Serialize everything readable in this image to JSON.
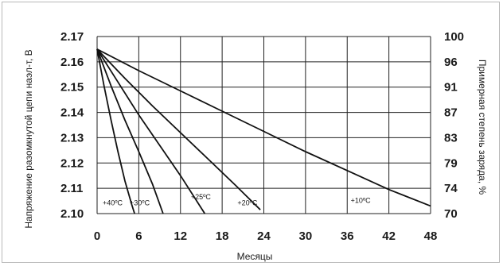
{
  "chart_data": {
    "type": "line",
    "xlabel": "Месяцы",
    "ylabel": "Напряжение разомкнутой цепи наэл-т, В",
    "y2label": "Примерная степень заряда, %",
    "x_ticks": [
      0,
      6,
      12,
      18,
      24,
      30,
      36,
      42,
      48
    ],
    "x_tick_labels": [
      "0",
      "6",
      "12",
      "18",
      "24",
      "30",
      "36",
      "42",
      "48"
    ],
    "xlim": [
      0,
      48
    ],
    "y_ticks": [
      2.1,
      2.11,
      2.12,
      2.13,
      2.14,
      2.15,
      2.16,
      2.17
    ],
    "y_tick_labels": [
      "2.10",
      "2.11",
      "2.12",
      "2.13",
      "2.14",
      "2.15",
      "2.16",
      "2.17"
    ],
    "ylim": [
      2.1,
      2.17
    ],
    "y2_tick_labels": [
      "70",
      "74",
      "79",
      "83",
      "87",
      "91",
      "96",
      "100"
    ],
    "grid": true,
    "legend": "none",
    "line_color": "#111111",
    "series": [
      {
        "name": "+40ºC",
        "x": [
          0,
          1,
          2,
          3,
          4,
          5,
          5.4
        ],
        "y": [
          2.165,
          2.1505,
          2.137,
          2.1245,
          2.113,
          2.1035,
          2.1
        ]
      },
      {
        "name": "+30ºC",
        "x": [
          0,
          2,
          4,
          6,
          8,
          9.5
        ],
        "y": [
          2.165,
          2.1505,
          2.137,
          2.1245,
          2.1115,
          2.1
        ]
      },
      {
        "name": "+25ºC",
        "x": [
          0,
          3,
          6,
          9,
          12,
          15.5
        ],
        "y": [
          2.165,
          2.152,
          2.139,
          2.127,
          2.115,
          2.1
        ]
      },
      {
        "name": "+20ºC",
        "x": [
          0,
          4,
          8,
          12,
          16,
          20,
          23.5
        ],
        "y": [
          2.165,
          2.1535,
          2.1425,
          2.132,
          2.1215,
          2.111,
          2.1015
        ]
      },
      {
        "name": "+10ºC",
        "x": [
          0,
          6,
          12,
          18,
          24,
          30,
          36,
          42,
          48
        ],
        "y": [
          2.165,
          2.1565,
          2.1485,
          2.1405,
          2.1325,
          2.1245,
          2.117,
          2.1095,
          2.103
        ]
      }
    ]
  }
}
